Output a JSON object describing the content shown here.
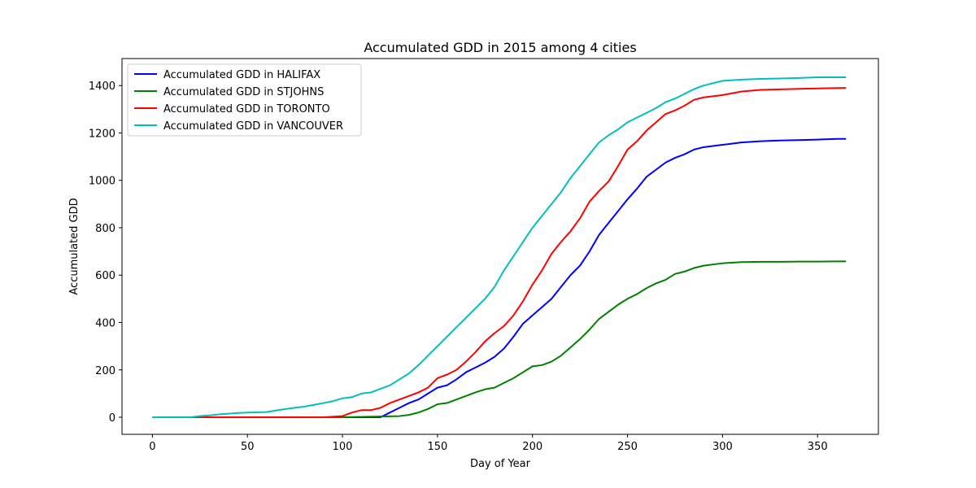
{
  "chart_data": {
    "type": "line",
    "title": "Accumulated GDD in 2015 among 4 cities",
    "xlabel": "Day of Year",
    "ylabel": "Accumulated GDD",
    "xlim": [
      -16,
      382
    ],
    "ylim": [
      -72,
      1514
    ],
    "xticks": [
      0,
      50,
      100,
      150,
      200,
      250,
      300,
      350
    ],
    "yticks": [
      0,
      200,
      400,
      600,
      800,
      1000,
      1200,
      1400
    ],
    "grid": false,
    "legend_position": "upper-left",
    "series": [
      {
        "name": "Accumulated GDD in HALIFAX",
        "color": "#0000ff",
        "points": [
          [
            0,
            0
          ],
          [
            60,
            0
          ],
          [
            100,
            0
          ],
          [
            120,
            0
          ],
          [
            125,
            20
          ],
          [
            130,
            40
          ],
          [
            135,
            60
          ],
          [
            140,
            75
          ],
          [
            145,
            100
          ],
          [
            150,
            125
          ],
          [
            155,
            135
          ],
          [
            160,
            160
          ],
          [
            165,
            190
          ],
          [
            170,
            210
          ],
          [
            175,
            230
          ],
          [
            180,
            255
          ],
          [
            185,
            290
          ],
          [
            190,
            340
          ],
          [
            195,
            395
          ],
          [
            200,
            430
          ],
          [
            205,
            465
          ],
          [
            210,
            500
          ],
          [
            215,
            550
          ],
          [
            220,
            600
          ],
          [
            225,
            640
          ],
          [
            230,
            700
          ],
          [
            235,
            770
          ],
          [
            240,
            820
          ],
          [
            245,
            870
          ],
          [
            250,
            920
          ],
          [
            255,
            965
          ],
          [
            260,
            1015
          ],
          [
            265,
            1045
          ],
          [
            270,
            1075
          ],
          [
            275,
            1095
          ],
          [
            280,
            1110
          ],
          [
            285,
            1130
          ],
          [
            290,
            1140
          ],
          [
            300,
            1150
          ],
          [
            310,
            1160
          ],
          [
            320,
            1165
          ],
          [
            330,
            1168
          ],
          [
            340,
            1170
          ],
          [
            350,
            1172
          ],
          [
            360,
            1175
          ],
          [
            365,
            1175
          ]
        ]
      },
      {
        "name": "Accumulated GDD in STJOHNS",
        "color": "#008000",
        "points": [
          [
            0,
            0
          ],
          [
            60,
            0
          ],
          [
            100,
            0
          ],
          [
            130,
            5
          ],
          [
            135,
            10
          ],
          [
            140,
            20
          ],
          [
            145,
            35
          ],
          [
            150,
            55
          ],
          [
            155,
            60
          ],
          [
            160,
            75
          ],
          [
            165,
            90
          ],
          [
            170,
            105
          ],
          [
            175,
            118
          ],
          [
            180,
            125
          ],
          [
            185,
            145
          ],
          [
            190,
            165
          ],
          [
            195,
            190
          ],
          [
            200,
            215
          ],
          [
            205,
            220
          ],
          [
            210,
            235
          ],
          [
            215,
            260
          ],
          [
            220,
            295
          ],
          [
            225,
            330
          ],
          [
            230,
            370
          ],
          [
            235,
            415
          ],
          [
            240,
            445
          ],
          [
            245,
            475
          ],
          [
            250,
            500
          ],
          [
            255,
            520
          ],
          [
            260,
            545
          ],
          [
            265,
            565
          ],
          [
            270,
            580
          ],
          [
            275,
            605
          ],
          [
            280,
            615
          ],
          [
            285,
            630
          ],
          [
            290,
            640
          ],
          [
            300,
            650
          ],
          [
            310,
            655
          ],
          [
            320,
            656
          ],
          [
            330,
            656
          ],
          [
            340,
            657
          ],
          [
            350,
            657
          ],
          [
            360,
            658
          ],
          [
            365,
            658
          ]
        ]
      },
      {
        "name": "Accumulated GDD in TORONTO",
        "color": "#ff0000",
        "points": [
          [
            0,
            0
          ],
          [
            60,
            0
          ],
          [
            90,
            0
          ],
          [
            100,
            5
          ],
          [
            105,
            20
          ],
          [
            110,
            30
          ],
          [
            115,
            30
          ],
          [
            120,
            40
          ],
          [
            125,
            60
          ],
          [
            130,
            75
          ],
          [
            135,
            90
          ],
          [
            140,
            105
          ],
          [
            145,
            125
          ],
          [
            150,
            165
          ],
          [
            155,
            180
          ],
          [
            160,
            200
          ],
          [
            165,
            235
          ],
          [
            170,
            275
          ],
          [
            175,
            320
          ],
          [
            180,
            355
          ],
          [
            185,
            385
          ],
          [
            190,
            430
          ],
          [
            195,
            490
          ],
          [
            200,
            560
          ],
          [
            205,
            620
          ],
          [
            210,
            690
          ],
          [
            215,
            740
          ],
          [
            220,
            785
          ],
          [
            225,
            840
          ],
          [
            230,
            910
          ],
          [
            235,
            955
          ],
          [
            240,
            995
          ],
          [
            245,
            1060
          ],
          [
            250,
            1130
          ],
          [
            255,
            1165
          ],
          [
            260,
            1210
          ],
          [
            265,
            1245
          ],
          [
            270,
            1280
          ],
          [
            275,
            1295
          ],
          [
            280,
            1315
          ],
          [
            285,
            1340
          ],
          [
            290,
            1350
          ],
          [
            300,
            1360
          ],
          [
            310,
            1375
          ],
          [
            320,
            1382
          ],
          [
            330,
            1384
          ],
          [
            340,
            1386
          ],
          [
            350,
            1388
          ],
          [
            365,
            1390
          ]
        ]
      },
      {
        "name": "Accumulated GDD in VANCOUVER",
        "color": "#00bfbf",
        "points": [
          [
            0,
            0
          ],
          [
            20,
            0
          ],
          [
            25,
            5
          ],
          [
            30,
            8
          ],
          [
            35,
            12
          ],
          [
            40,
            15
          ],
          [
            45,
            18
          ],
          [
            50,
            20
          ],
          [
            60,
            22
          ],
          [
            70,
            35
          ],
          [
            80,
            45
          ],
          [
            90,
            60
          ],
          [
            95,
            68
          ],
          [
            100,
            80
          ],
          [
            105,
            85
          ],
          [
            110,
            100
          ],
          [
            115,
            105
          ],
          [
            120,
            120
          ],
          [
            125,
            135
          ],
          [
            130,
            160
          ],
          [
            135,
            185
          ],
          [
            140,
            220
          ],
          [
            145,
            260
          ],
          [
            150,
            300
          ],
          [
            155,
            340
          ],
          [
            160,
            380
          ],
          [
            165,
            420
          ],
          [
            170,
            460
          ],
          [
            175,
            500
          ],
          [
            180,
            550
          ],
          [
            185,
            620
          ],
          [
            190,
            680
          ],
          [
            195,
            740
          ],
          [
            200,
            800
          ],
          [
            205,
            850
          ],
          [
            210,
            900
          ],
          [
            215,
            950
          ],
          [
            220,
            1010
          ],
          [
            225,
            1060
          ],
          [
            230,
            1110
          ],
          [
            235,
            1160
          ],
          [
            240,
            1190
          ],
          [
            245,
            1215
          ],
          [
            250,
            1245
          ],
          [
            255,
            1265
          ],
          [
            260,
            1285
          ],
          [
            265,
            1305
          ],
          [
            270,
            1330
          ],
          [
            275,
            1345
          ],
          [
            280,
            1365
          ],
          [
            285,
            1385
          ],
          [
            290,
            1400
          ],
          [
            300,
            1420
          ],
          [
            310,
            1425
          ],
          [
            320,
            1428
          ],
          [
            330,
            1430
          ],
          [
            340,
            1432
          ],
          [
            350,
            1435
          ],
          [
            365,
            1435
          ]
        ]
      }
    ]
  }
}
